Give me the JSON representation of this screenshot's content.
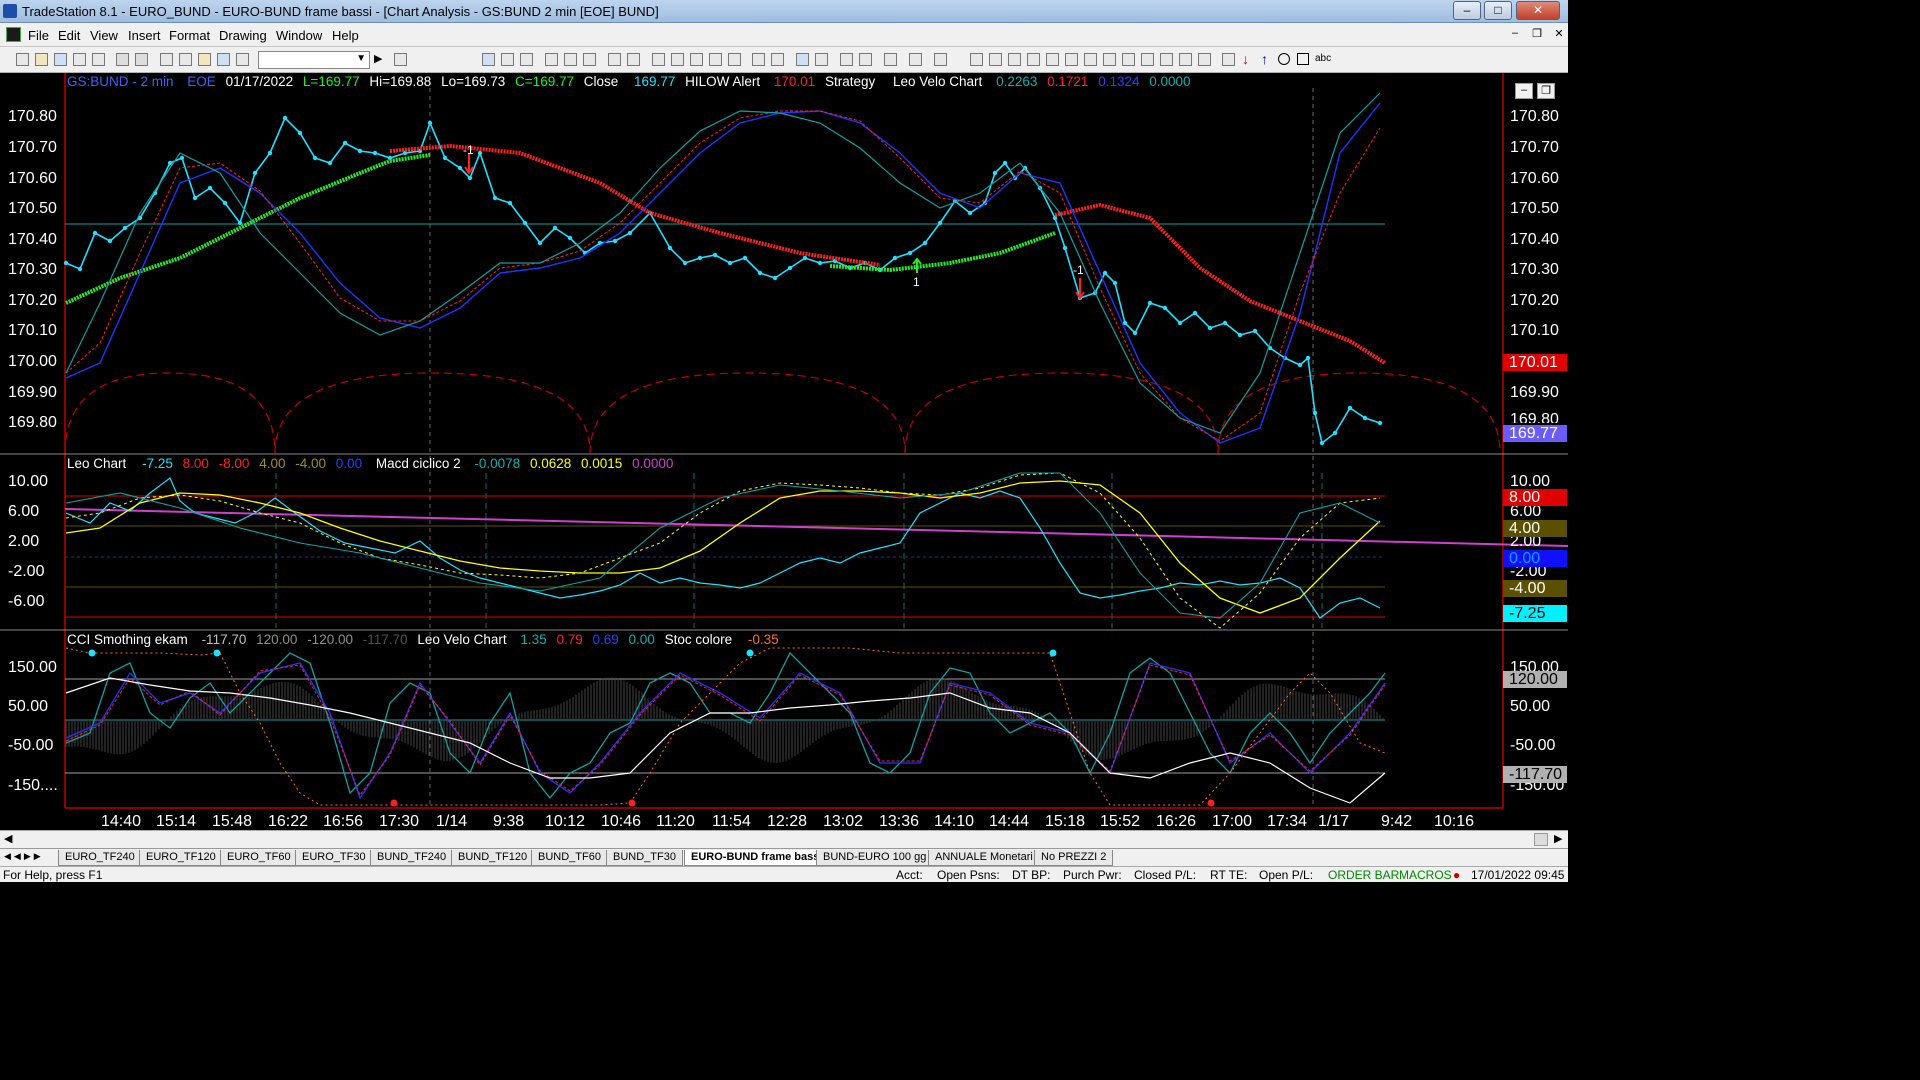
{
  "window": {
    "title": "TradeStation 8.1 - EURO_BUND - EURO-BUND frame bassi - [Chart Analysis - GS:BUND  2 min  [EOE] BUND]"
  },
  "menu": [
    "File",
    "Edit",
    "View",
    "Insert",
    "Format",
    "Drawing",
    "Window",
    "Help"
  ],
  "pane1": {
    "header": {
      "symbol": "GS:BUND - 2 min",
      "exchange": "EOE",
      "date": "01/17/2022",
      "low_last": "L=169.77",
      "high": "Hi=169.88",
      "low": "Lo=169.73",
      "close_val": "C=169.77",
      "close_label": "Close",
      "close_num": "169.77",
      "hilow_label": "HILOW Alert",
      "hilow_val": "170.01",
      "strategy_label": "Strategy",
      "velo_label": "Leo Velo Chart",
      "velo_v1": "0.2263",
      "velo_v2": "0.1721",
      "velo_v3": "0.1324",
      "velo_v4": "0.0000"
    },
    "y_labels": [
      "170.80",
      "170.70",
      "170.60",
      "170.50",
      "170.40",
      "170.30",
      "170.20",
      "170.10",
      "170.00",
      "169.90",
      "169.80"
    ],
    "badge_hilow": "170.01",
    "badge_close": "169.77",
    "partial_label": "169.80",
    "signals": [
      "-1",
      "1",
      "-1"
    ]
  },
  "pane2": {
    "header": {
      "name": "Leo Chart",
      "v1": "-7.25",
      "v2": "8.00",
      "v3": "-8.00",
      "v4": "4.00",
      "v5": "-4.00",
      "v6": "0.00",
      "macd_label": "Macd ciclico 2",
      "m1": "-0.0078",
      "m2": "0.0628",
      "m3": "0.0015",
      "m4": "0.0000"
    },
    "y_labels": [
      "10.00",
      "6.00",
      "2.00",
      "-2.00",
      "-6.00"
    ],
    "badges": [
      "8.00",
      "4.00",
      "0.00",
      "-4.00",
      "-7.25"
    ],
    "right_labels": [
      "10.00",
      "6.00",
      "2.00",
      "-2.00"
    ]
  },
  "pane3": {
    "header": {
      "name": "CCI Smothing ekam",
      "c1": "-117.70",
      "c2": "120.00",
      "c3": "-120.00",
      "c4": "-117.70",
      "velo_label": "Leo Velo Chart",
      "v1": "1.35",
      "v2": "0.79",
      "v3": "0.69",
      "v4": "0.00",
      "stoc_label": "Stoc colore",
      "stoc_val": "-0.35"
    },
    "y_labels": [
      "150.00",
      "50.00",
      "-50.00",
      "-150...."
    ],
    "right_labels": [
      "150.00",
      "50.00",
      "-50.00",
      "-150.00"
    ],
    "badges": [
      "120.00",
      "-117.70"
    ]
  },
  "x_axis": [
    "14:40",
    "15:14",
    "15:48",
    "16:22",
    "16:56",
    "17:30",
    "1/14",
    "9:38",
    "10:12",
    "10:46",
    "11:20",
    "11:54",
    "12:28",
    "13:02",
    "13:36",
    "14:10",
    "14:44",
    "15:18",
    "15:52",
    "16:26",
    "17:00",
    "17:34",
    "1/17",
    "9:42",
    "10:16"
  ],
  "tabs": [
    "EURO_TF240",
    "EURO_TF120",
    "EURO_TF60",
    "EURO_TF30",
    "BUND_TF240",
    "BUND_TF120",
    "BUND_TF60",
    "BUND_TF30",
    "EURO-BUND frame bassi",
    "BUND-EURO 100 gg",
    "ANNUALE Monetari",
    "No PREZZI 2"
  ],
  "status": {
    "help": "For Help, press F1",
    "acct": "Acct:",
    "open_psns": "Open Psns:",
    "dt_bp": "DT BP:",
    "purch_pwr": "Purch Pwr:",
    "closed_pl": "Closed P/L:",
    "rt_te": "RT TE:",
    "open_pl": "Open P/L:",
    "order_bar": "ORDER BAR",
    "macros": "MACROS",
    "datetime": "17/01/2022 09:45"
  },
  "colors": {
    "cyan": "#1ee0ff",
    "red": "#ff2020",
    "green": "#22ee22",
    "blue": "#2233ff",
    "yellow": "#ffff00",
    "teal": "#10a0a0",
    "magenta": "#d040d0",
    "darkred": "#c00000"
  }
}
